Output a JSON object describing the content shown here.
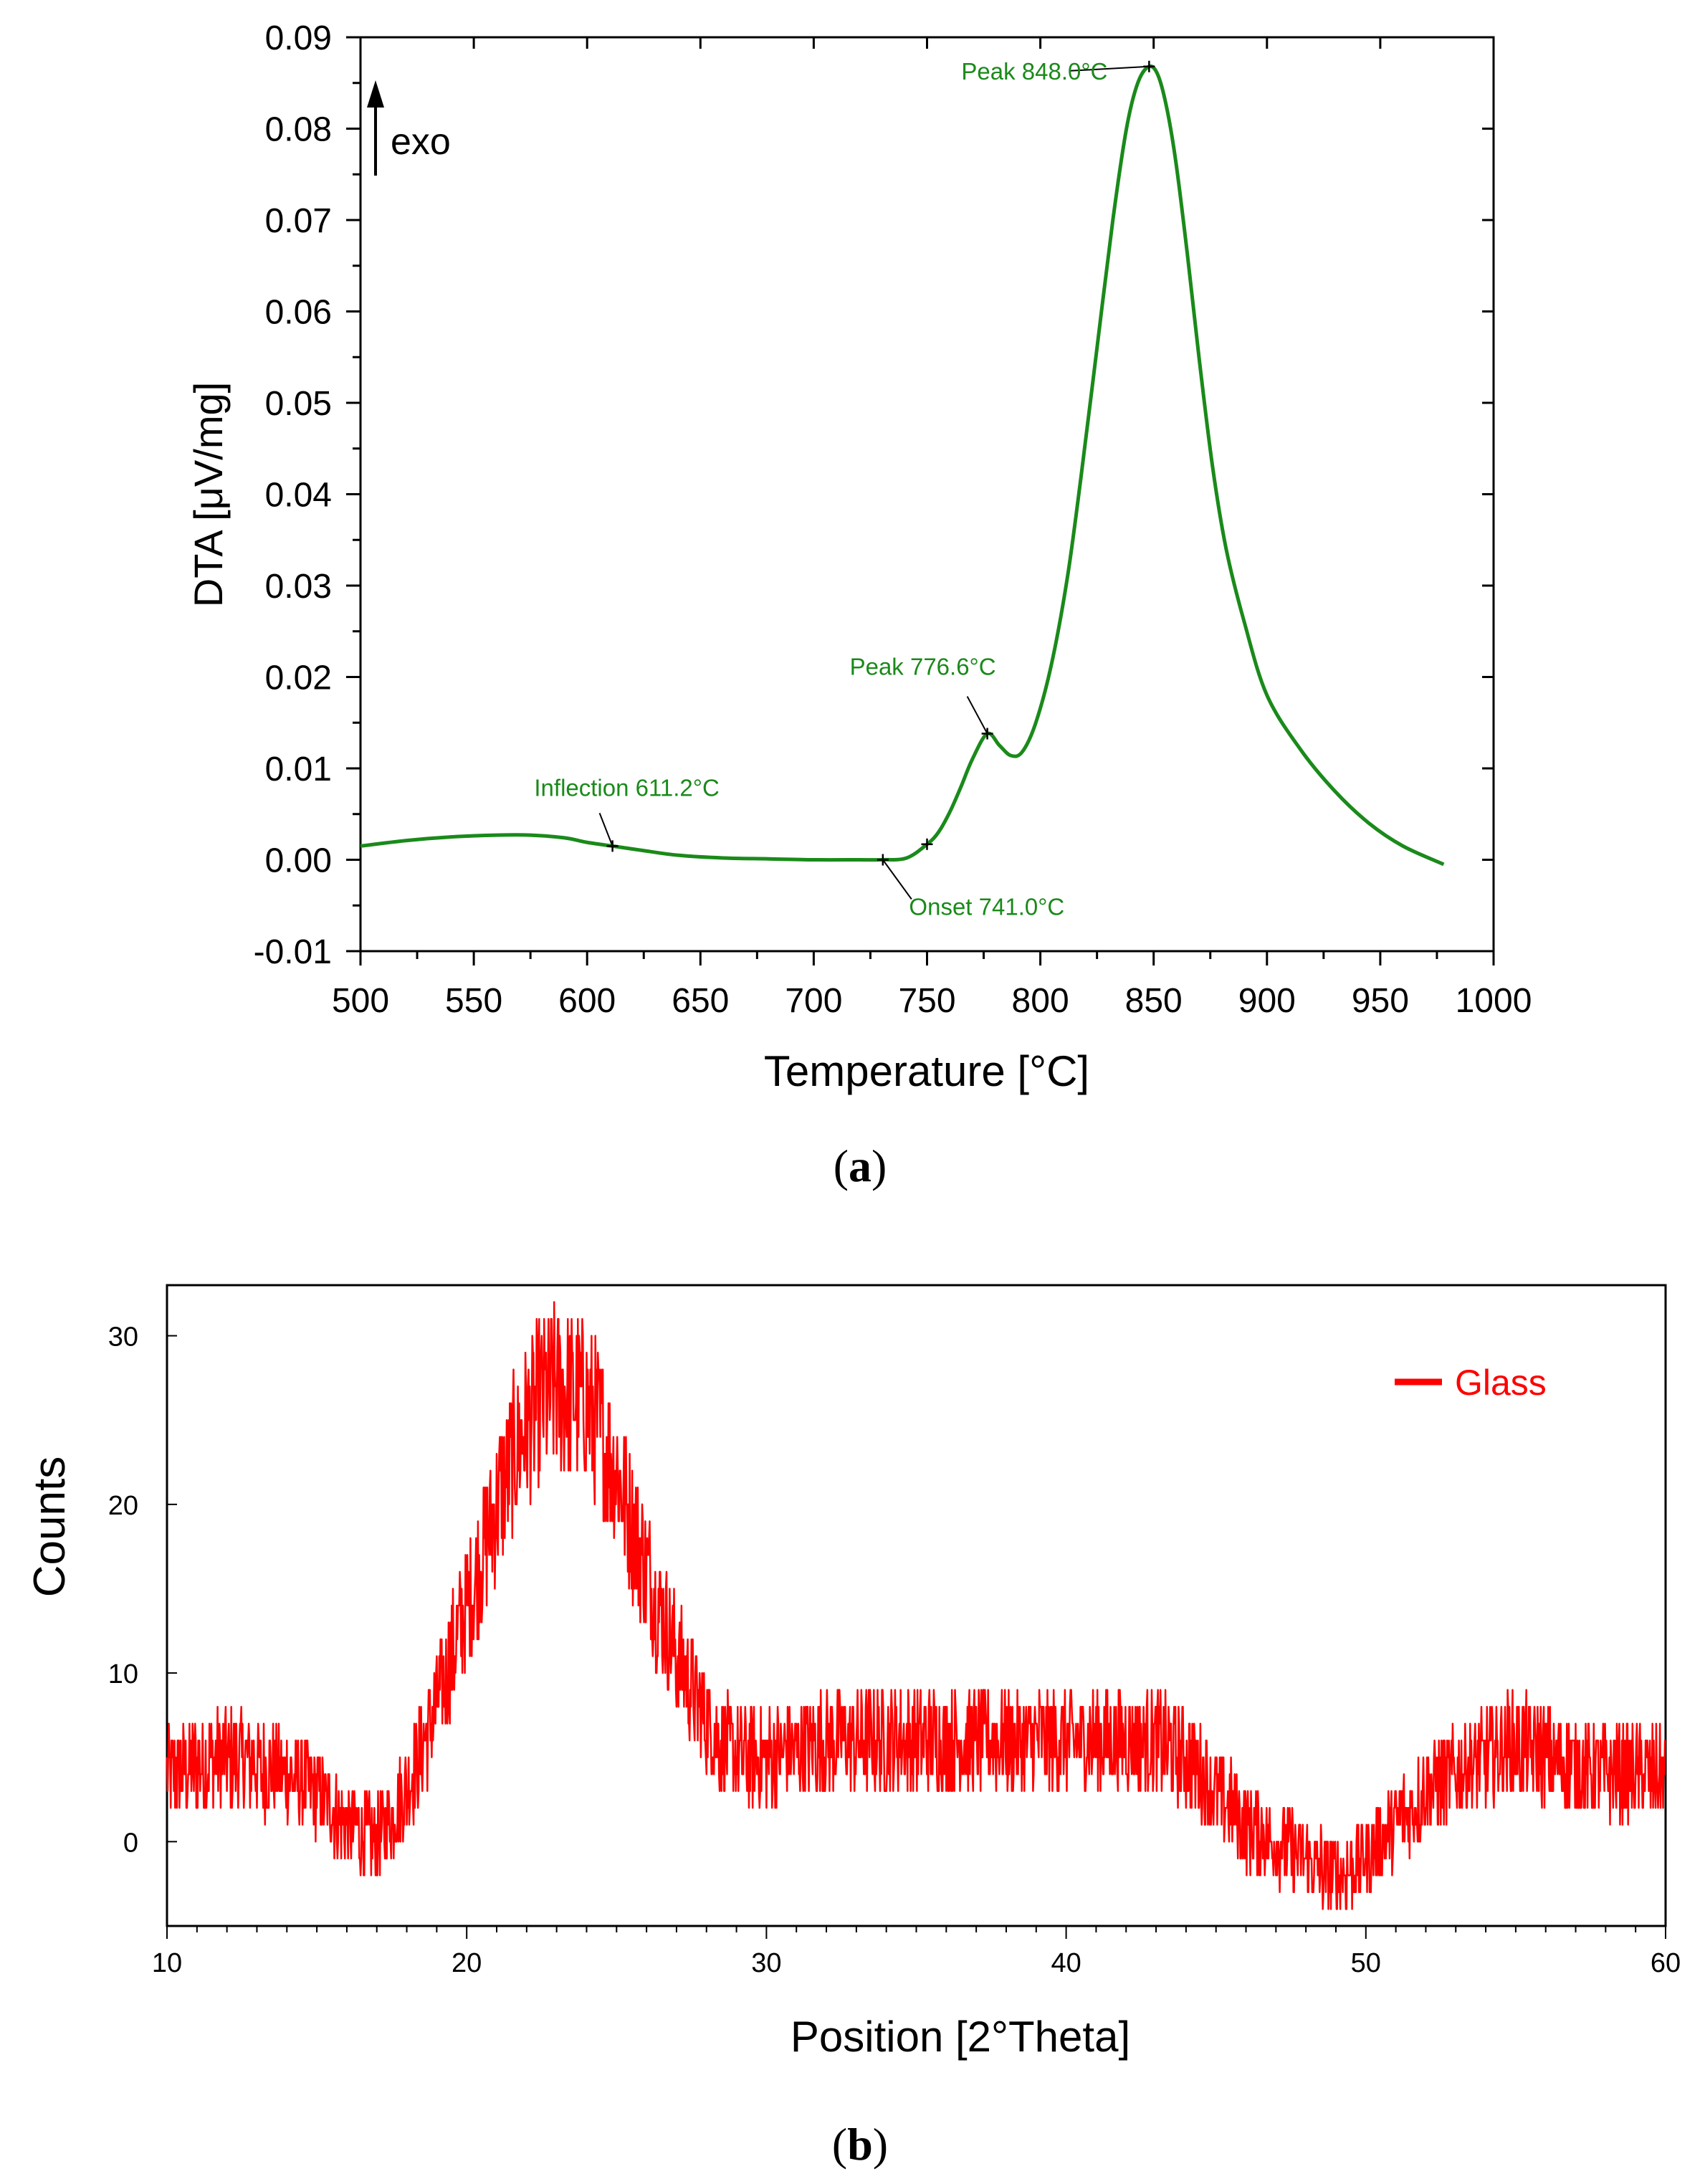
{
  "chart_data": [
    {
      "id": "a",
      "type": "line",
      "panel_label": "a",
      "title": "",
      "xlabel": "Temperature [°C]",
      "ylabel": "DTA [μV/mg]",
      "xlim": [
        500,
        1000
      ],
      "ylim": [
        -0.01,
        0.09
      ],
      "x_ticks": [
        500,
        550,
        600,
        650,
        700,
        750,
        800,
        850,
        900,
        950,
        1000
      ],
      "x_tick_labels": [
        "500",
        "550",
        "600",
        "650",
        "700",
        "750",
        "800",
        "850",
        "900",
        "950",
        "1000"
      ],
      "y_ticks": [
        -0.01,
        0.0,
        0.01,
        0.02,
        0.03,
        0.04,
        0.05,
        0.06,
        0.07,
        0.08,
        0.09
      ],
      "y_tick_labels": [
        "-0.01",
        "0.00",
        "0.01",
        "0.02",
        "0.03",
        "0.04",
        "0.05",
        "0.06",
        "0.07",
        "0.08",
        "0.09"
      ],
      "direction_label": "exo",
      "series": [
        {
          "name": "DTA",
          "color": "#1a8a1a",
          "x": [
            500,
            520,
            540,
            560,
            575,
            590,
            600,
            611.2,
            625,
            640,
            660,
            680,
            700,
            720,
            730,
            741,
            750,
            755,
            760,
            765,
            770,
            776.6,
            782,
            787,
            792,
            798,
            805,
            812,
            818,
            825,
            832,
            838,
            843,
            848,
            852,
            856,
            860,
            865,
            870,
            876,
            882,
            890,
            900,
            915,
            930,
            945,
            960,
            978
          ],
          "y": [
            0.0015,
            0.0021,
            0.0025,
            0.0027,
            0.0027,
            0.0024,
            0.0019,
            0.0015,
            0.001,
            0.0005,
            0.0002,
            0.0001,
            0.0,
            0.0,
            0.0,
            0.0002,
            0.0017,
            0.003,
            0.0052,
            0.008,
            0.011,
            0.0138,
            0.0125,
            0.0114,
            0.0118,
            0.015,
            0.0215,
            0.031,
            0.042,
            0.056,
            0.07,
            0.08,
            0.085,
            0.0868,
            0.0858,
            0.082,
            0.076,
            0.066,
            0.055,
            0.043,
            0.034,
            0.026,
            0.018,
            0.012,
            0.0075,
            0.004,
            0.0015,
            -0.0005
          ]
        }
      ],
      "annotations": [
        {
          "text": "Peak 848.0°C",
          "x": 848.0,
          "y": 0.0868
        },
        {
          "text": "Peak 776.6°C",
          "x": 776.6,
          "y": 0.0138
        },
        {
          "text": "Inflection 611.2°C",
          "x": 611.2,
          "y": 0.0015
        },
        {
          "text": "Onset 741.0°C",
          "x": 730.5,
          "y": 0.0
        },
        {
          "text": "",
          "x": 750.0,
          "y": 0.0017
        }
      ]
    },
    {
      "id": "b",
      "type": "line",
      "panel_label": "b",
      "title": "",
      "xlabel": "Position [2°Theta]",
      "ylabel": "Counts",
      "xlim": [
        10,
        60
      ],
      "ylim": [
        -5,
        33
      ],
      "x_ticks": [
        10,
        20,
        30,
        40,
        50,
        60
      ],
      "x_tick_labels": [
        "10",
        "20",
        "30",
        "40",
        "50",
        "60"
      ],
      "y_ticks": [
        0,
        10,
        20,
        30
      ],
      "y_tick_labels": [
        "0",
        "10",
        "20",
        "30"
      ],
      "legend": {
        "position": "top-right",
        "entries": [
          "Glass"
        ]
      },
      "series": [
        {
          "name": "Glass",
          "color": "#ff0000",
          "noise_amplitude": 2.5,
          "x": [
            10,
            12,
            14,
            15,
            16,
            17,
            18,
            19,
            20,
            21,
            22,
            23,
            24,
            25,
            26,
            27,
            28,
            29,
            30,
            32,
            34,
            36,
            38,
            40,
            42,
            43,
            44,
            45,
            46,
            47,
            48,
            49,
            50,
            51,
            52,
            53,
            54,
            55,
            56,
            58,
            60
          ],
          "y": [
            4,
            5,
            4,
            3,
            1,
            0,
            3,
            8,
            14,
            20,
            25,
            27,
            26,
            22,
            16,
            11,
            7,
            5,
            5,
            6,
            6,
            6,
            6,
            6,
            6,
            6,
            5,
            3,
            1,
            0,
            -1,
            -2,
            -1,
            1,
            3,
            4,
            5,
            6,
            5,
            4,
            4
          ]
        }
      ]
    }
  ]
}
